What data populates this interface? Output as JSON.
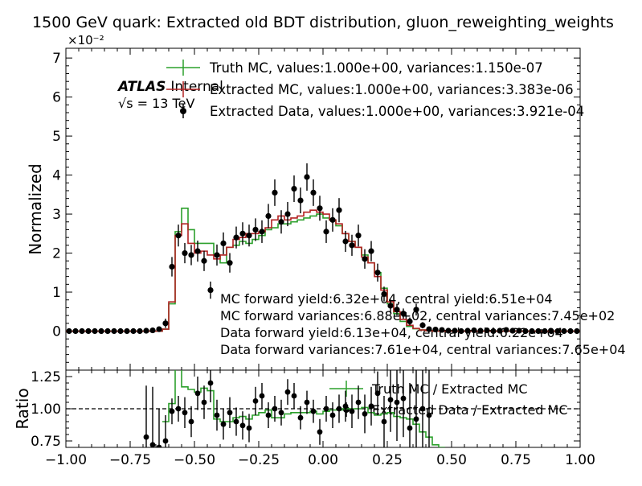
{
  "title": "1500 GeV quark: Extracted old BDT distribution, gluon_reweighting_weights",
  "atlas": {
    "brand": "ATLAS",
    "status": "Internal",
    "energy_prefix": "√s = ",
    "energy_value": "13 TeV"
  },
  "colors": {
    "truth_mc": "#2ca02c",
    "extracted_mc": "#b22222",
    "data": "#000000",
    "reference_line": "#000000"
  },
  "legend_top": [
    {
      "label": "Truth MC, values:1.000e+00, variances:1.150e-07",
      "style": "line",
      "color": "#2ca02c"
    },
    {
      "label": "Extracted MC, values:1.000e+00, variances:3.383e-06",
      "style": "line",
      "color": "#b22222"
    },
    {
      "label": "Extracted Data, values:1.000e+00, variances:3.921e-04",
      "style": "marker",
      "color": "#000000"
    }
  ],
  "annotations": [
    "MC forward yield:6.32e+04, central yield:6.51e+04",
    "MC forward variances:6.88e+02, central variances:7.45e+02",
    "Data forward yield:6.13e+04, central yield:6.22e+04",
    "Data forward variances:7.61e+04, central variances:7.65e+04"
  ],
  "legend_ratio": [
    {
      "label": "Truth MC / Extracted MC",
      "style": "line",
      "color": "#2ca02c"
    },
    {
      "label": "Extracted Data / Extracted MC",
      "style": "marker",
      "color": "#000000"
    }
  ],
  "chart_data": [
    {
      "type": "line",
      "panel": "main",
      "ylabel": "Normalized",
      "xlim": [
        -1.0,
        1.0
      ],
      "ylim": [
        -0.01,
        0.0725
      ],
      "y_scale_label": "×10⁻²",
      "yticks": [
        0,
        1,
        2,
        3,
        4,
        5,
        6,
        7
      ],
      "ytick_labels": [
        "0",
        "1",
        "2",
        "3",
        "4",
        "5",
        "6",
        "7"
      ],
      "bin_edges": [
        -1.0,
        -0.975,
        -0.95,
        -0.925,
        -0.9,
        -0.875,
        -0.85,
        -0.825,
        -0.8,
        -0.775,
        -0.75,
        -0.725,
        -0.7,
        -0.675,
        -0.65,
        -0.625,
        -0.6,
        -0.575,
        -0.55,
        -0.525,
        -0.5,
        -0.475,
        -0.45,
        -0.425,
        -0.4,
        -0.375,
        -0.35,
        -0.325,
        -0.3,
        -0.275,
        -0.25,
        -0.225,
        -0.2,
        -0.175,
        -0.15,
        -0.125,
        -0.1,
        -0.075,
        -0.05,
        -0.025,
        0.0,
        0.025,
        0.05,
        0.075,
        0.1,
        0.125,
        0.15,
        0.175,
        0.2,
        0.225,
        0.25,
        0.275,
        0.3,
        0.325,
        0.35,
        0.375,
        0.4,
        0.425,
        0.45,
        0.475,
        0.5,
        0.525,
        0.55,
        0.575,
        0.6,
        0.625,
        0.65,
        0.675,
        0.7,
        0.725,
        0.75,
        0.775,
        0.8,
        0.825,
        0.85,
        0.875,
        0.9,
        0.925,
        0.95,
        0.975,
        1.0
      ],
      "series": [
        {
          "name": "Truth MC",
          "values": [
            0,
            0,
            0,
            0,
            0,
            0,
            0,
            0,
            0,
            0,
            0,
            0,
            0,
            0,
            0,
            0.0005,
            0.007,
            0.0255,
            0.0315,
            0.026,
            0.0225,
            0.0225,
            0.0225,
            0.0195,
            0.0175,
            0.0215,
            0.022,
            0.023,
            0.0225,
            0.0235,
            0.0245,
            0.026,
            0.0265,
            0.0275,
            0.0275,
            0.028,
            0.0285,
            0.029,
            0.0295,
            0.03,
            0.029,
            0.0285,
            0.027,
            0.025,
            0.023,
            0.0215,
            0.0195,
            0.0175,
            0.015,
            0.011,
            0.007,
            0.0045,
            0.0025,
            0.0012,
            0.0006,
            0.0003,
            0.0001,
            0,
            0,
            0,
            0,
            0,
            0,
            0,
            0,
            0,
            0,
            0,
            0,
            0,
            0,
            0,
            0,
            0,
            0,
            0,
            0,
            0,
            0,
            0
          ]
        },
        {
          "name": "Extracted MC",
          "values": [
            0,
            0,
            0,
            0,
            0,
            0,
            0,
            0,
            0,
            0,
            0,
            0,
            0,
            0,
            0,
            0.0005,
            0.0075,
            0.0245,
            0.0275,
            0.0225,
            0.02,
            0.0205,
            0.0195,
            0.0185,
            0.0195,
            0.0215,
            0.0235,
            0.024,
            0.025,
            0.025,
            0.0255,
            0.0265,
            0.0285,
            0.0295,
            0.0285,
            0.029,
            0.0295,
            0.0305,
            0.031,
            0.0305,
            0.03,
            0.0285,
            0.0275,
            0.025,
            0.023,
            0.0215,
            0.019,
            0.0175,
            0.014,
            0.0105,
            0.0075,
            0.005,
            0.003,
            0.0015,
            0.0007,
            0.0003,
            0.0001,
            0,
            0,
            0,
            0,
            0,
            0,
            0,
            0,
            0,
            0,
            0,
            0,
            0,
            0,
            0,
            0,
            0,
            0,
            0,
            0,
            0,
            0,
            0
          ]
        }
      ]
    },
    {
      "type": "scatter",
      "panel": "main",
      "name": "Extracted Data",
      "x": [
        -0.9875,
        -0.9625,
        -0.9375,
        -0.9125,
        -0.8875,
        -0.8625,
        -0.8375,
        -0.8125,
        -0.7875,
        -0.7625,
        -0.7375,
        -0.7125,
        -0.6875,
        -0.6625,
        -0.6375,
        -0.6125,
        -0.5875,
        -0.5625,
        -0.5375,
        -0.5125,
        -0.4875,
        -0.4625,
        -0.4375,
        -0.4125,
        -0.3875,
        -0.3625,
        -0.3375,
        -0.3125,
        -0.2875,
        -0.2625,
        -0.2375,
        -0.2125,
        -0.1875,
        -0.1625,
        -0.1375,
        -0.1125,
        -0.0875,
        -0.0625,
        -0.0375,
        -0.0125,
        0.0125,
        0.0375,
        0.0625,
        0.0875,
        0.1125,
        0.1375,
        0.1625,
        0.1875,
        0.2125,
        0.2375,
        0.2625,
        0.2875,
        0.3125,
        0.3375,
        0.3625,
        0.3875,
        0.4125,
        0.4375,
        0.4625,
        0.4875,
        0.5125,
        0.5375,
        0.5625,
        0.5875,
        0.6125,
        0.6375,
        0.6625,
        0.6875,
        0.7125,
        0.7375,
        0.7625,
        0.7875,
        0.8125,
        0.8375,
        0.8625,
        0.8875,
        0.9125,
        0.9375,
        0.9625,
        0.9875
      ],
      "y": [
        0,
        0,
        0,
        0,
        0,
        0,
        0,
        0,
        0,
        0,
        0,
        0,
        0.0001,
        0.0002,
        0.0005,
        0.002,
        0.0165,
        0.0245,
        0.02,
        0.0195,
        0.0205,
        0.018,
        0.0105,
        0.0195,
        0.0225,
        0.0175,
        0.024,
        0.025,
        0.0245,
        0.026,
        0.0255,
        0.0295,
        0.0355,
        0.028,
        0.03,
        0.0365,
        0.0335,
        0.0395,
        0.0355,
        0.0315,
        0.0255,
        0.0285,
        0.031,
        0.023,
        0.022,
        0.0245,
        0.0185,
        0.0205,
        0.015,
        0.0095,
        0.0065,
        0.0055,
        0.0045,
        0.0025,
        0.0055,
        0.0015,
        0.0005,
        0.0004,
        0.0003,
        0.0001,
        0.0001,
        0,
        0.0001,
        0.0002,
        0.0001,
        0.0002,
        0,
        0.0001,
        0.0003,
        0.0001,
        0.0001,
        0,
        0,
        0,
        0,
        0,
        0,
        0,
        0,
        0
      ],
      "yerr": [
        0,
        0,
        0,
        0,
        0,
        0,
        0,
        0,
        0,
        0,
        0,
        0,
        0.0003,
        0.0004,
        0.0006,
        0.0012,
        0.0025,
        0.0028,
        0.0026,
        0.0026,
        0.0027,
        0.0026,
        0.0022,
        0.0027,
        0.0028,
        0.0025,
        0.0028,
        0.0029,
        0.0028,
        0.0029,
        0.0029,
        0.0031,
        0.0034,
        0.003,
        0.0031,
        0.0034,
        0.0033,
        0.0035,
        0.0034,
        0.0032,
        0.0029,
        0.003,
        0.0031,
        0.0027,
        0.0027,
        0.0028,
        0.0025,
        0.0026,
        0.0023,
        0.0019,
        0.0016,
        0.0015,
        0.0013,
        0.001,
        0.0015,
        0.0008,
        0.0005,
        0.0004,
        0.0004,
        0.0003,
        0.0003,
        0,
        0.0003,
        0.0003,
        0.0003,
        0.0003,
        0,
        0.0003,
        0.0004,
        0.0003,
        0.0003,
        0,
        0,
        0,
        0,
        0,
        0,
        0,
        0,
        0
      ]
    },
    {
      "type": "line",
      "panel": "ratio",
      "xlabel": "",
      "ylabel": "Ratio",
      "xlim": [
        -1.0,
        1.0
      ],
      "ylim": [
        0.7,
        1.3
      ],
      "yticks": [
        0.75,
        1.0,
        1.25
      ],
      "ytick_labels": [
        "0.75",
        "1.00",
        "1.25"
      ],
      "xticks": [
        -1.0,
        -0.75,
        -0.5,
        -0.25,
        0.0,
        0.25,
        0.5,
        0.75,
        1.0
      ],
      "xtick_labels": [
        "−1.00",
        "−0.75",
        "−0.50",
        "−0.25",
        "0.00",
        "0.25",
        "0.50",
        "0.75",
        "1.00"
      ],
      "reference_line": 1.0,
      "bin_edges": [
        -0.625,
        -0.6,
        -0.575,
        -0.55,
        -0.525,
        -0.5,
        -0.475,
        -0.45,
        -0.425,
        -0.4,
        -0.375,
        -0.35,
        -0.325,
        -0.3,
        -0.275,
        -0.25,
        -0.225,
        -0.2,
        -0.175,
        -0.15,
        -0.125,
        -0.1,
        -0.075,
        -0.05,
        -0.025,
        0.0,
        0.025,
        0.05,
        0.075,
        0.1,
        0.125,
        0.15,
        0.175,
        0.2,
        0.225,
        0.25,
        0.275,
        0.3,
        0.325,
        0.35,
        0.375,
        0.4,
        0.425,
        0.45,
        0.475
      ],
      "series": [
        {
          "name": "Truth MC / Extracted MC",
          "values": [
            0.9,
            1.04,
            1.35,
            1.17,
            1.15,
            1.13,
            1.16,
            1.14,
            0.92,
            0.9,
            0.9,
            0.93,
            0.94,
            0.92,
            0.95,
            0.97,
            0.99,
            0.93,
            0.93,
            0.96,
            0.97,
            0.97,
            0.97,
            0.98,
            0.96,
            0.98,
            0.99,
            0.99,
            1.0,
            1.0,
            1.0,
            1.01,
            0.97,
            0.95,
            0.96,
            0.97,
            0.94,
            0.93,
            0.92,
            0.88,
            0.82,
            0.78,
            0.72,
            0.7
          ]
        }
      ]
    },
    {
      "type": "scatter",
      "panel": "ratio",
      "name": "Extracted Data / Extracted MC",
      "x": [
        -0.6875,
        -0.6625,
        -0.6375,
        -0.6125,
        -0.5875,
        -0.5625,
        -0.5375,
        -0.5125,
        -0.4875,
        -0.4625,
        -0.4375,
        -0.4125,
        -0.3875,
        -0.3625,
        -0.3375,
        -0.3125,
        -0.2875,
        -0.2625,
        -0.2375,
        -0.2125,
        -0.1875,
        -0.1625,
        -0.1375,
        -0.1125,
        -0.0875,
        -0.0625,
        -0.0375,
        -0.0125,
        0.0125,
        0.0375,
        0.0625,
        0.0875,
        0.1125,
        0.1375,
        0.1625,
        0.1875,
        0.2125,
        0.2375,
        0.2625,
        0.2875,
        0.3125,
        0.3375,
        0.3625,
        0.3875,
        0.4125
      ],
      "y": [
        0.78,
        0.72,
        0.7,
        0.75,
        0.98,
        1.0,
        0.97,
        0.9,
        1.12,
        1.05,
        1.2,
        0.95,
        0.88,
        0.97,
        0.9,
        0.87,
        0.85,
        1.06,
        1.1,
        0.95,
        1.0,
        0.97,
        1.13,
        1.1,
        0.93,
        1.05,
        0.98,
        0.82,
        1.0,
        0.95,
        1.0,
        1.02,
        0.98,
        1.05,
        0.96,
        1.02,
        1.12,
        0.9,
        1.07,
        1.05,
        1.08,
        0.85,
        0.92,
        1.0,
        0.95
      ],
      "yerr": [
        0.4,
        0.45,
        0.3,
        0.2,
        0.1,
        0.1,
        0.12,
        0.12,
        0.13,
        0.13,
        0.15,
        0.12,
        0.12,
        0.12,
        0.11,
        0.11,
        0.11,
        0.11,
        0.1,
        0.1,
        0.1,
        0.1,
        0.1,
        0.1,
        0.09,
        0.09,
        0.09,
        0.1,
        0.1,
        0.1,
        0.11,
        0.12,
        0.13,
        0.13,
        0.15,
        0.15,
        0.17,
        0.2,
        0.25,
        0.3,
        0.3,
        0.35,
        0.4,
        0.45,
        0.5
      ]
    }
  ]
}
